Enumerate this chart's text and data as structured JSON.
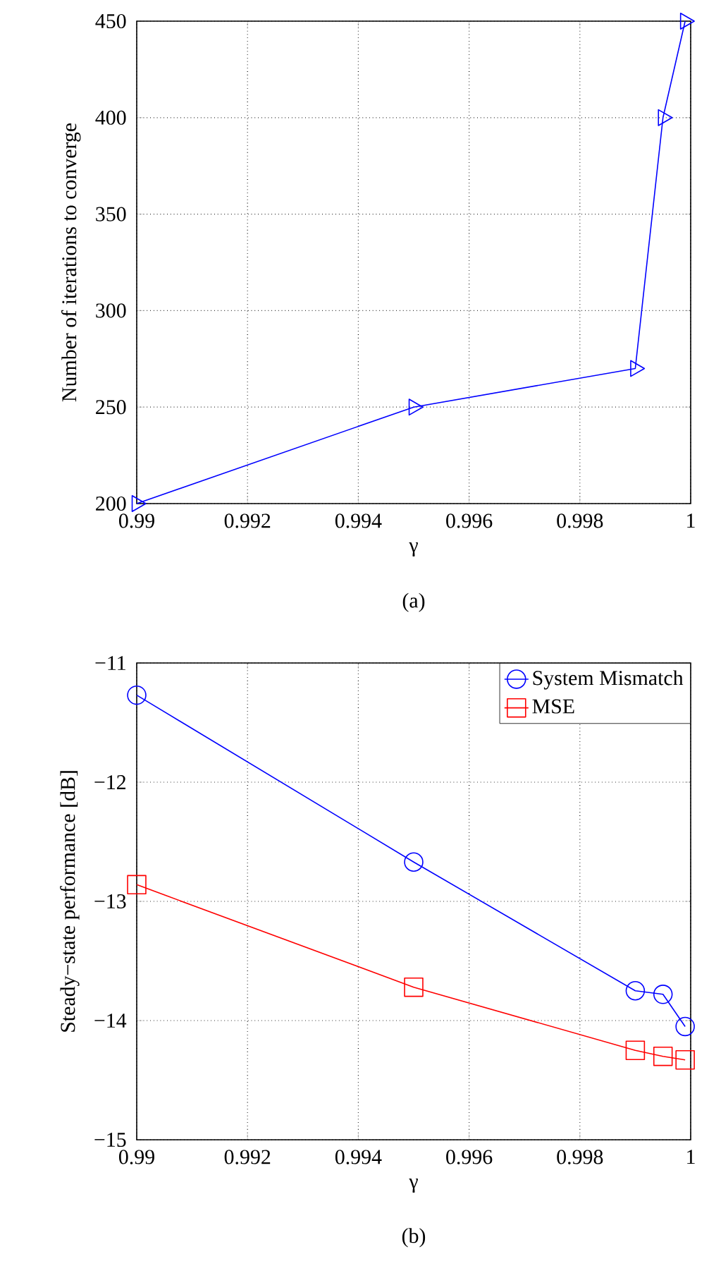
{
  "chart_data": [
    {
      "type": "line",
      "xlabel": "γ",
      "ylabel": "Number of iterations to converge",
      "annotations": [
        "(a)"
      ],
      "x": [
        0.99,
        0.995,
        0.999,
        0.9995,
        0.9999
      ],
      "series": [
        {
          "color": "#0000ff",
          "marker": "triangle",
          "values": [
            200,
            250,
            270,
            400,
            450
          ]
        }
      ],
      "xlim": [
        0.99,
        1
      ],
      "xticks": [
        0.99,
        0.992,
        0.994,
        0.996,
        0.998,
        1
      ],
      "ylim": [
        200,
        450
      ],
      "yticks": [
        200,
        250,
        300,
        350,
        400,
        450
      ],
      "grid": true,
      "line_style": "solid"
    },
    {
      "type": "line",
      "xlabel": "γ",
      "ylabel": "Steady−state performance [dB]",
      "annotations": [
        "(b)"
      ],
      "x": [
        0.99,
        0.995,
        0.999,
        0.9995,
        0.9999
      ],
      "series": [
        {
          "name": "System Mismatch",
          "color": "#0000ff",
          "marker": "circle",
          "values": [
            -11.27,
            -12.67,
            -13.75,
            -13.78,
            -14.05
          ]
        },
        {
          "name": "MSE",
          "color": "#ff0000",
          "marker": "square",
          "values": [
            -12.86,
            -13.72,
            -14.25,
            -14.3,
            -14.33
          ]
        }
      ],
      "xlim": [
        0.99,
        1
      ],
      "xticks": [
        0.99,
        0.992,
        0.994,
        0.996,
        0.998,
        1
      ],
      "ylim": [
        -15,
        -11
      ],
      "yticks": [
        {
          "value": -15,
          "label": "−15"
        },
        {
          "value": -14,
          "label": "−14"
        },
        {
          "value": -13,
          "label": "−13"
        },
        {
          "value": -12,
          "label": "−12"
        },
        {
          "value": -11,
          "label": "−11"
        }
      ],
      "grid": true,
      "legend": "top right",
      "line_style": "solid"
    }
  ]
}
